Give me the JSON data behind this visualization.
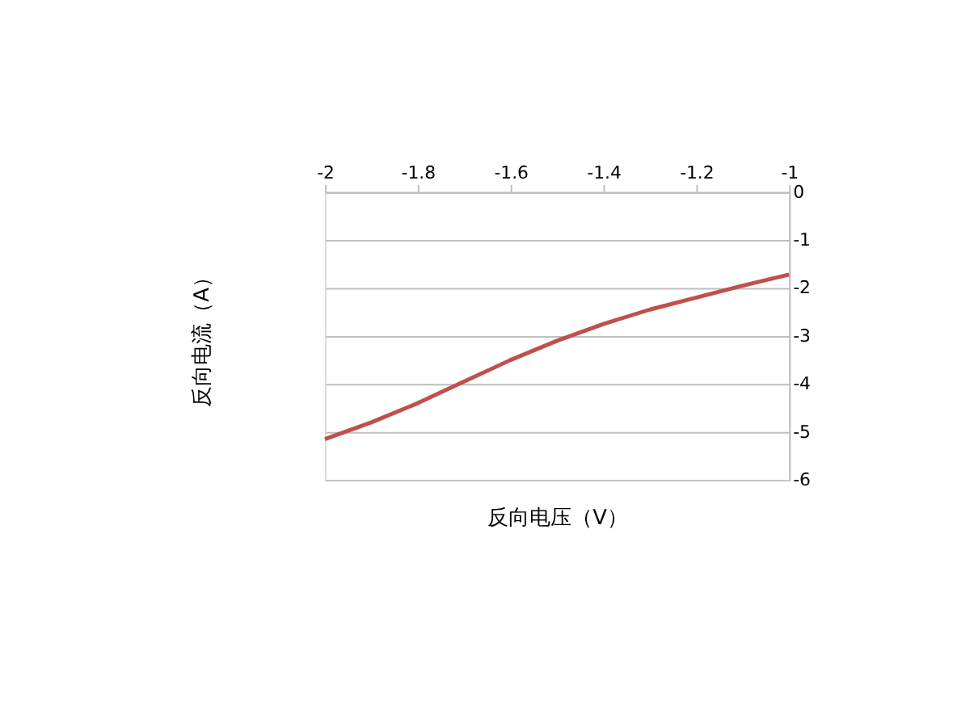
{
  "chart_data": {
    "type": "line",
    "xlabel": "反向电压（V）",
    "ylabel": "反向电流（A）",
    "x": [
      -2,
      -1.9,
      -1.8,
      -1.7,
      -1.6,
      -1.5,
      -1.4,
      -1.3,
      -1.2,
      -1.1,
      -1
    ],
    "series": [
      {
        "color": "#c0504d",
        "values": [
          -5.15,
          -4.8,
          -4.4,
          -3.95,
          -3.5,
          -3.1,
          -2.75,
          -2.45,
          -2.2,
          -1.95,
          -1.72
        ]
      }
    ],
    "xlim": [
      -2,
      -1
    ],
    "xticks": [
      -2,
      -1.8,
      -1.6,
      -1.4,
      -1.2,
      -1
    ],
    "ylim": [
      -6,
      0
    ],
    "yticks": [
      0,
      -1,
      -2,
      -3,
      -4,
      -5,
      -6
    ],
    "grid": "y",
    "legend": false,
    "marker": "none",
    "line_style": "solid"
  }
}
